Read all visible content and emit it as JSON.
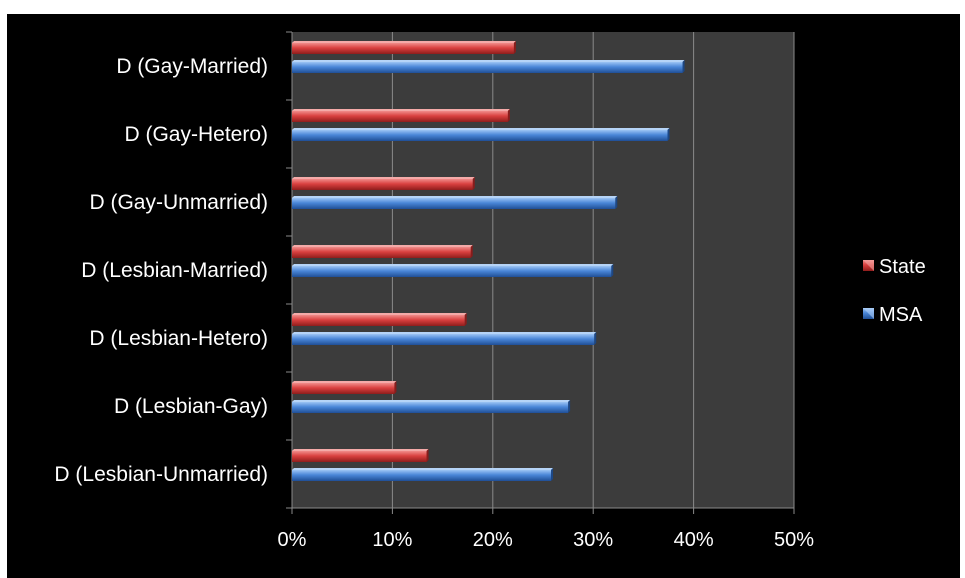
{
  "chart_data": {
    "type": "bar",
    "orientation": "horizontal",
    "title": "",
    "xlabel": "",
    "ylabel": "",
    "categories": [
      "D (Gay-Married)",
      "D (Gay-Hetero)",
      "D (Gay-Unmarried)",
      "D (Lesbian-Married)",
      "D (Lesbian-Hetero)",
      "D (Lesbian-Gay)",
      "D (Lesbian-Unmarried)"
    ],
    "series": [
      {
        "name": "State",
        "color": "#d9403f",
        "values": [
          22.1,
          21.5,
          18.0,
          17.8,
          17.2,
          10.2,
          13.4
        ]
      },
      {
        "name": "MSA",
        "color": "#4a86d8",
        "values": [
          38.9,
          37.4,
          32.2,
          31.8,
          30.1,
          27.5,
          25.8
        ]
      }
    ],
    "xlim": [
      0,
      50
    ],
    "x_ticks": [
      "0%",
      "10%",
      "20%",
      "30%",
      "40%",
      "50%"
    ],
    "value_format": "percent",
    "grid": "vertical",
    "legend_position": "right",
    "plot_background": "#3c3c3c",
    "figure_background": "#000000",
    "text_color": "#ffffff"
  }
}
